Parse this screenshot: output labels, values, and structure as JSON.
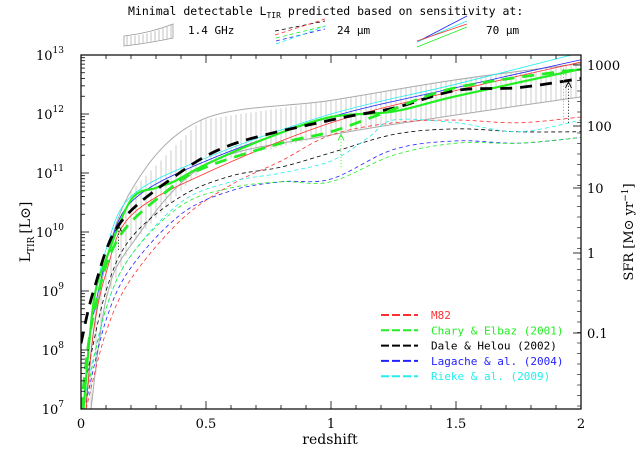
{
  "header": {
    "title_pre": "Minimal detectable L",
    "title_sub": "TIR",
    "title_post": " predicted based on sensitivity at:",
    "bands": [
      {
        "label": "1.4 GHz",
        "icon": "hatched-band-icon"
      },
      {
        "label": "24 μm",
        "icon": "dashed-lines-icon"
      },
      {
        "label": "70 μm",
        "icon": "solid-lines-icon"
      }
    ]
  },
  "legend": {
    "items": [
      {
        "label": "M82",
        "color": "#ff3030"
      },
      {
        "label": "Chary & Elbaz (2001)",
        "color": "#22ee22"
      },
      {
        "label": "Dale & Helou (2002)",
        "color": "#000000"
      },
      {
        "label": "Lagache & al. (2004)",
        "color": "#2222ff"
      },
      {
        "label": "Rieke & al. (2009)",
        "color": "#22eeee"
      }
    ]
  },
  "chart_data": {
    "type": "line",
    "xlabel": "redshift",
    "ylabel": "L",
    "ylabel_sub": "TIR",
    "ylabel_unit": "[L⊙]",
    "y2label": "SFR [M⊙ yr",
    "y2label_sup": "−1",
    "y2label_end": "]",
    "xlim": [
      0,
      2
    ],
    "ylim": [
      10000000.0,
      10000000000000.0
    ],
    "yscale": "log",
    "grid": false,
    "legend_position": "bottom-right",
    "x_ticks": [
      {
        "value": 0,
        "label": "0"
      },
      {
        "value": 0.5,
        "label": "0.5"
      },
      {
        "value": 1,
        "label": "1"
      },
      {
        "value": 1.5,
        "label": "1.5"
      },
      {
        "value": 2,
        "label": "2"
      }
    ],
    "y_ticks": [
      {
        "value": 10000000.0,
        "base": "10",
        "exp": "7"
      },
      {
        "value": 100000000.0,
        "base": "10",
        "exp": "8"
      },
      {
        "value": 1000000000.0,
        "base": "10",
        "exp": "9"
      },
      {
        "value": 10000000000.0,
        "base": "10",
        "exp": "10"
      },
      {
        "value": 100000000000.0,
        "base": "10",
        "exp": "11"
      },
      {
        "value": 1000000000000.0,
        "base": "10",
        "exp": "12"
      },
      {
        "value": 10000000000000.0,
        "base": "10",
        "exp": "13"
      }
    ],
    "y2_ticks": [
      "1000",
      "100",
      "10",
      "1",
      "0.1"
    ],
    "radio_band": {
      "upper": [
        [
          0.02,
          14000000.0
        ],
        [
          0.076,
          1050000000.0
        ],
        [
          0.2,
          50000000000.0
        ],
        [
          0.48,
          790000000000.0
        ],
        [
          1.0,
          1700000000000.0
        ],
        [
          1.5,
          3800000000000.0
        ],
        [
          2.0,
          7200000000000.0
        ]
      ],
      "lower": [
        [
          0.04,
          10000000.0
        ],
        [
          0.1,
          710000000.0
        ],
        [
          0.2,
          6000000000.0
        ],
        [
          0.5,
          140000000000.0
        ],
        [
          1.0,
          440000000000.0
        ],
        [
          1.5,
          960000000000.0
        ],
        [
          2.0,
          1950000000000.0
        ]
      ],
      "color": "#aaaaaa"
    },
    "series": [
      {
        "model": "M82",
        "band": "24 μm",
        "style": "thin-dashed",
        "color": "#ff3030",
        "points": [
          [
            0.02,
            10000000.0
          ],
          [
            0.1,
            200000000.0
          ],
          [
            0.2,
            1600000000.0
          ],
          [
            0.4,
            16000000000.0
          ],
          [
            0.6,
            63000000000.0
          ],
          [
            0.8,
            160000000000.0
          ],
          [
            1.0,
            440000000000.0
          ],
          [
            1.25,
            710000000000.0
          ],
          [
            1.5,
            790000000000.0
          ],
          [
            1.75,
            710000000000.0
          ],
          [
            2.0,
            890000000000.0
          ]
        ]
      },
      {
        "model": "Dale & Helou (2002)",
        "band": "24 μm",
        "style": "thin-dashed",
        "color": "#000000",
        "points": [
          [
            0.02,
            32000000.0
          ],
          [
            0.1,
            1000000000.0
          ],
          [
            0.2,
            7900000000.0
          ],
          [
            0.4,
            40000000000.0
          ],
          [
            0.6,
            89000000000.0
          ],
          [
            0.8,
            126000000000.0
          ],
          [
            1.0,
            220000000000.0
          ],
          [
            1.25,
            450000000000.0
          ],
          [
            1.5,
            560000000000.0
          ],
          [
            1.75,
            500000000000.0
          ],
          [
            2.0,
            500000000000.0
          ]
        ]
      },
      {
        "model": "Rieke & al. (2009)",
        "band": "24 μm",
        "style": "thin-dashed",
        "color": "#22eeee",
        "points": [
          [
            0.02,
            20000000.0
          ],
          [
            0.1,
            500000000.0
          ],
          [
            0.2,
            4000000000.0
          ],
          [
            0.4,
            32000000000.0
          ],
          [
            0.6,
            71000000000.0
          ],
          [
            0.8,
            100000000000.0
          ],
          [
            1.0,
            160000000000.0
          ],
          [
            1.15,
            400000000000.0
          ],
          [
            1.25,
            790000000000.0
          ],
          [
            1.5,
            710000000000.0
          ],
          [
            1.75,
            500000000000.0
          ],
          [
            2.0,
            790000000000.0
          ]
        ]
      },
      {
        "model": "Lagache & al. (2004)",
        "band": "24 μm",
        "style": "thin-dashed",
        "color": "#2222ff",
        "points": [
          [
            0.02,
            13000000.0
          ],
          [
            0.1,
            320000000.0
          ],
          [
            0.2,
            2500000000.0
          ],
          [
            0.4,
            20000000000.0
          ],
          [
            0.6,
            50000000000.0
          ],
          [
            0.8,
            71000000000.0
          ],
          [
            1.0,
            79000000000.0
          ],
          [
            1.25,
            250000000000.0
          ],
          [
            1.5,
            350000000000.0
          ],
          [
            1.75,
            320000000000.0
          ],
          [
            2.0,
            400000000000.0
          ]
        ]
      },
      {
        "model": "Chary & Elbaz (2001)",
        "band": "24 μm",
        "style": "thin-dashed",
        "color": "#22ee22",
        "points": [
          [
            0.02,
            16000000.0
          ],
          [
            0.1,
            500000000.0
          ],
          [
            0.2,
            4000000000.0
          ],
          [
            0.4,
            28000000000.0
          ],
          [
            0.6,
            56000000000.0
          ],
          [
            0.8,
            71000000000.0
          ],
          [
            1.0,
            71000000000.0
          ],
          [
            1.25,
            200000000000.0
          ],
          [
            1.5,
            320000000000.0
          ],
          [
            1.75,
            320000000000.0
          ],
          [
            2.0,
            400000000000.0
          ]
        ]
      },
      {
        "model": "M82",
        "band": "70 μm",
        "style": "thin-solid",
        "color": "#ff3030",
        "points": [
          [
            0.02,
            10000000.0
          ],
          [
            0.05,
            200000000.0
          ],
          [
            0.1,
            2000000000.0
          ],
          [
            0.2,
            19000000000.0
          ],
          [
            0.5,
            100000000000.0
          ],
          [
            1.0,
            710000000000.0
          ],
          [
            1.5,
            2500000000000.0
          ],
          [
            2.0,
            7600000000000.0
          ]
        ]
      },
      {
        "model": "Lagache & al. (2004)",
        "band": "70 μm",
        "style": "thin-solid",
        "color": "#2222ff",
        "points": [
          [
            0.05,
            400000000.0
          ],
          [
            0.1,
            3200000000.0
          ],
          [
            0.2,
            32000000000.0
          ],
          [
            0.5,
            160000000000.0
          ],
          [
            1.0,
            890000000000.0
          ],
          [
            1.5,
            2800000000000.0
          ],
          [
            2.0,
            8300000000000.0
          ]
        ]
      },
      {
        "model": "Rieke & al. (2009)",
        "band": "70 μm",
        "style": "thin-solid",
        "color": "#22eeee",
        "points": [
          [
            0.05,
            630000000.0
          ],
          [
            0.1,
            5000000000.0
          ],
          [
            0.2,
            40000000000.0
          ],
          [
            0.5,
            180000000000.0
          ],
          [
            1.0,
            1000000000000.0
          ],
          [
            1.5,
            3200000000000.0
          ],
          [
            2.0,
            11000000000000.0
          ]
        ]
      },
      {
        "model": "Chary & Elbaz (2001)",
        "band": "70 μm",
        "style": "thick-solid",
        "color": "#22ee22",
        "points": [
          [
            0.01,
            10000000.0
          ],
          [
            0.05,
            630000000.0
          ],
          [
            0.1,
            3400000000.0
          ],
          [
            0.2,
            35000000000.0
          ],
          [
            0.3,
            56000000000.0
          ],
          [
            0.37,
            71000000000.0
          ],
          [
            0.5,
            140000000000.0
          ],
          [
            0.75,
            400000000000.0
          ],
          [
            1.0,
            890000000000.0
          ],
          [
            1.25,
            1100000000000.0
          ],
          [
            1.5,
            2000000000000.0
          ],
          [
            2.0,
            5800000000000.0
          ]
        ]
      },
      {
        "model": "Dale & Helou (2002)",
        "band": "70 μm",
        "style": "thick-dashed",
        "color": "#000000",
        "points": [
          [
            0.0,
            130000000.0
          ],
          [
            0.05,
            1000000000.0
          ],
          [
            0.15,
            13000000000.0
          ],
          [
            0.36,
            79000000000.0
          ],
          [
            0.6,
            300000000000.0
          ],
          [
            1.0,
            790000000000.0
          ],
          [
            1.25,
            1260000000000.0
          ],
          [
            1.5,
            2500000000000.0
          ],
          [
            1.75,
            2800000000000.0
          ],
          [
            2.0,
            4000000000000.0
          ]
        ]
      },
      {
        "model": "Chary & Elbaz (2001)",
        "band": "70 μm",
        "style": "thick-dashed",
        "color": "#22ee22",
        "points": [
          [
            0.0,
            10000000.0
          ],
          [
            0.05,
            400000000.0
          ],
          [
            0.15,
            7900000000.0
          ],
          [
            0.36,
            56000000000.0
          ],
          [
            0.5,
            126000000000.0
          ],
          [
            0.8,
            320000000000.0
          ],
          [
            1.0,
            500000000000.0
          ],
          [
            1.2,
            1000000000000.0
          ],
          [
            1.5,
            2800000000000.0
          ],
          [
            2.0,
            5800000000000.0
          ]
        ]
      }
    ],
    "arrows": [
      {
        "z": 0.15,
        "from": 5000000000.0,
        "to": 13000000000.0,
        "color": "#000000"
      },
      {
        "z": 1.04,
        "from": 126000000000.0,
        "to": 450000000000.0,
        "color": "#22ee22"
      },
      {
        "z": 1.93,
        "from": 710000000000.0,
        "to": 5800000000000.0,
        "color": "#22ee22"
      },
      {
        "z": 1.95,
        "from": 710000000000.0,
        "to": 3500000000000.0,
        "color": "#000000"
      }
    ]
  }
}
